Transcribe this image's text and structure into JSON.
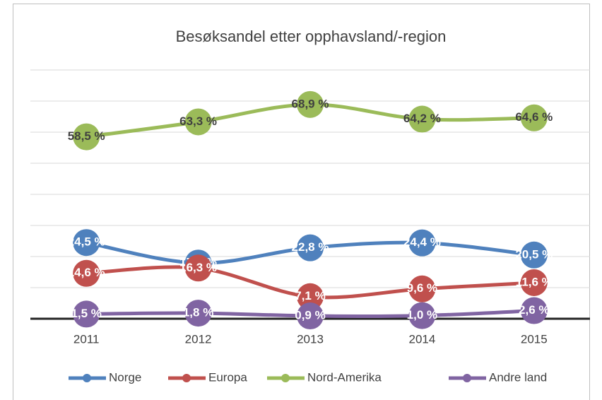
{
  "chart_data": {
    "type": "line",
    "title": "Besøksandel etter opphavsland/-region",
    "categories": [
      "2011",
      "2012",
      "2013",
      "2014",
      "2015"
    ],
    "ylim": [
      0,
      80
    ],
    "yticks": [
      0,
      10,
      20,
      30,
      40,
      50,
      60,
      70,
      80
    ],
    "grid": true,
    "legend": "bottom",
    "series": [
      {
        "name": "Norge",
        "color": "#4f81bd",
        "label_color": "#ffffff",
        "values": [
          24.5,
          17.9,
          22.8,
          24.4,
          20.5
        ],
        "value_labels": [
          "24,5 %",
          "17,9 %",
          "22,8 %",
          "24,4 %",
          "20,5 %"
        ]
      },
      {
        "name": "Europa",
        "color": "#c0504d",
        "label_color": "#ffffff",
        "values": [
          14.6,
          16.3,
          7.1,
          9.6,
          11.6
        ],
        "value_labels": [
          "14,6 %",
          "16,3 %",
          "7,1 %",
          "9,6 %",
          "11,6 %"
        ]
      },
      {
        "name": "Nord-Amerika",
        "color": "#9bbb59",
        "label_color": "#404040",
        "values": [
          58.5,
          63.3,
          68.9,
          64.2,
          64.6
        ],
        "value_labels": [
          "58,5 %",
          "63,3 %",
          "68,9 %",
          "64,2 %",
          "64,6 %"
        ]
      },
      {
        "name": "Andre land",
        "color": "#8064a2",
        "label_color": "#ffffff",
        "values": [
          1.5,
          1.8,
          0.9,
          1.0,
          2.6
        ],
        "value_labels": [
          "1,5 %",
          "1,8 %",
          "0,9 %",
          "1,0 %",
          "2,6 %"
        ]
      }
    ]
  }
}
